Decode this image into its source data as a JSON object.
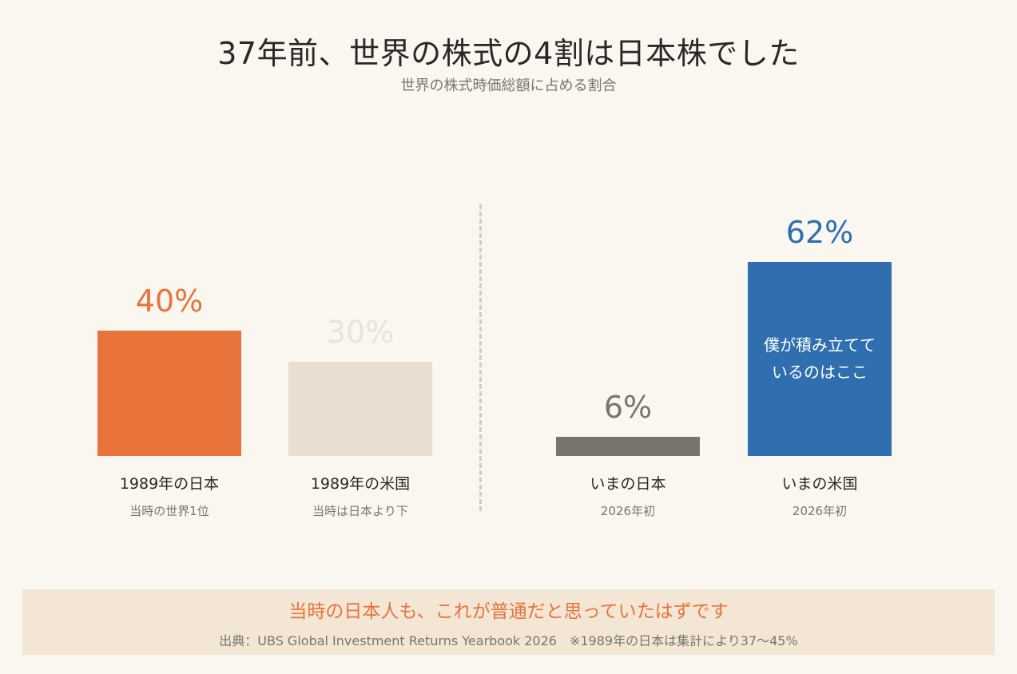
{
  "chart_data": {
    "type": "bar",
    "title": "37年前、世界の株式の4割は日本株でした",
    "subtitle": "世界の株式時価総額に占める割合",
    "unit": "%",
    "ylim": [
      0,
      100
    ],
    "categories": [
      "1989年の日本",
      "1989年の米国",
      "いまの日本",
      "いまの米国"
    ],
    "sublabels": [
      "当時の世界1位",
      "当時は日本より下",
      "2026年初",
      "2026年初"
    ],
    "values": [
      40,
      30,
      6,
      62
    ],
    "value_labels": [
      "40%",
      "30%",
      "6%",
      "62%"
    ],
    "colors": [
      "#e8743b",
      "#e9ded0",
      "#7a746e",
      "#2f6eaf"
    ],
    "label_colors": [
      "#e8743b",
      "#ece3d8",
      "#7a746e",
      "#2f6eaf"
    ],
    "bar_note": [
      "僕が積み立てて",
      "いるのはここ"
    ],
    "bar_note_index": 3
  },
  "footer": {
    "message": "当時の日本人も、これが普通だと思っていたはずです",
    "source": "出典：UBS Global Investment Returns Yearbook 2026　※1989年の日本は集計により37〜45%"
  }
}
